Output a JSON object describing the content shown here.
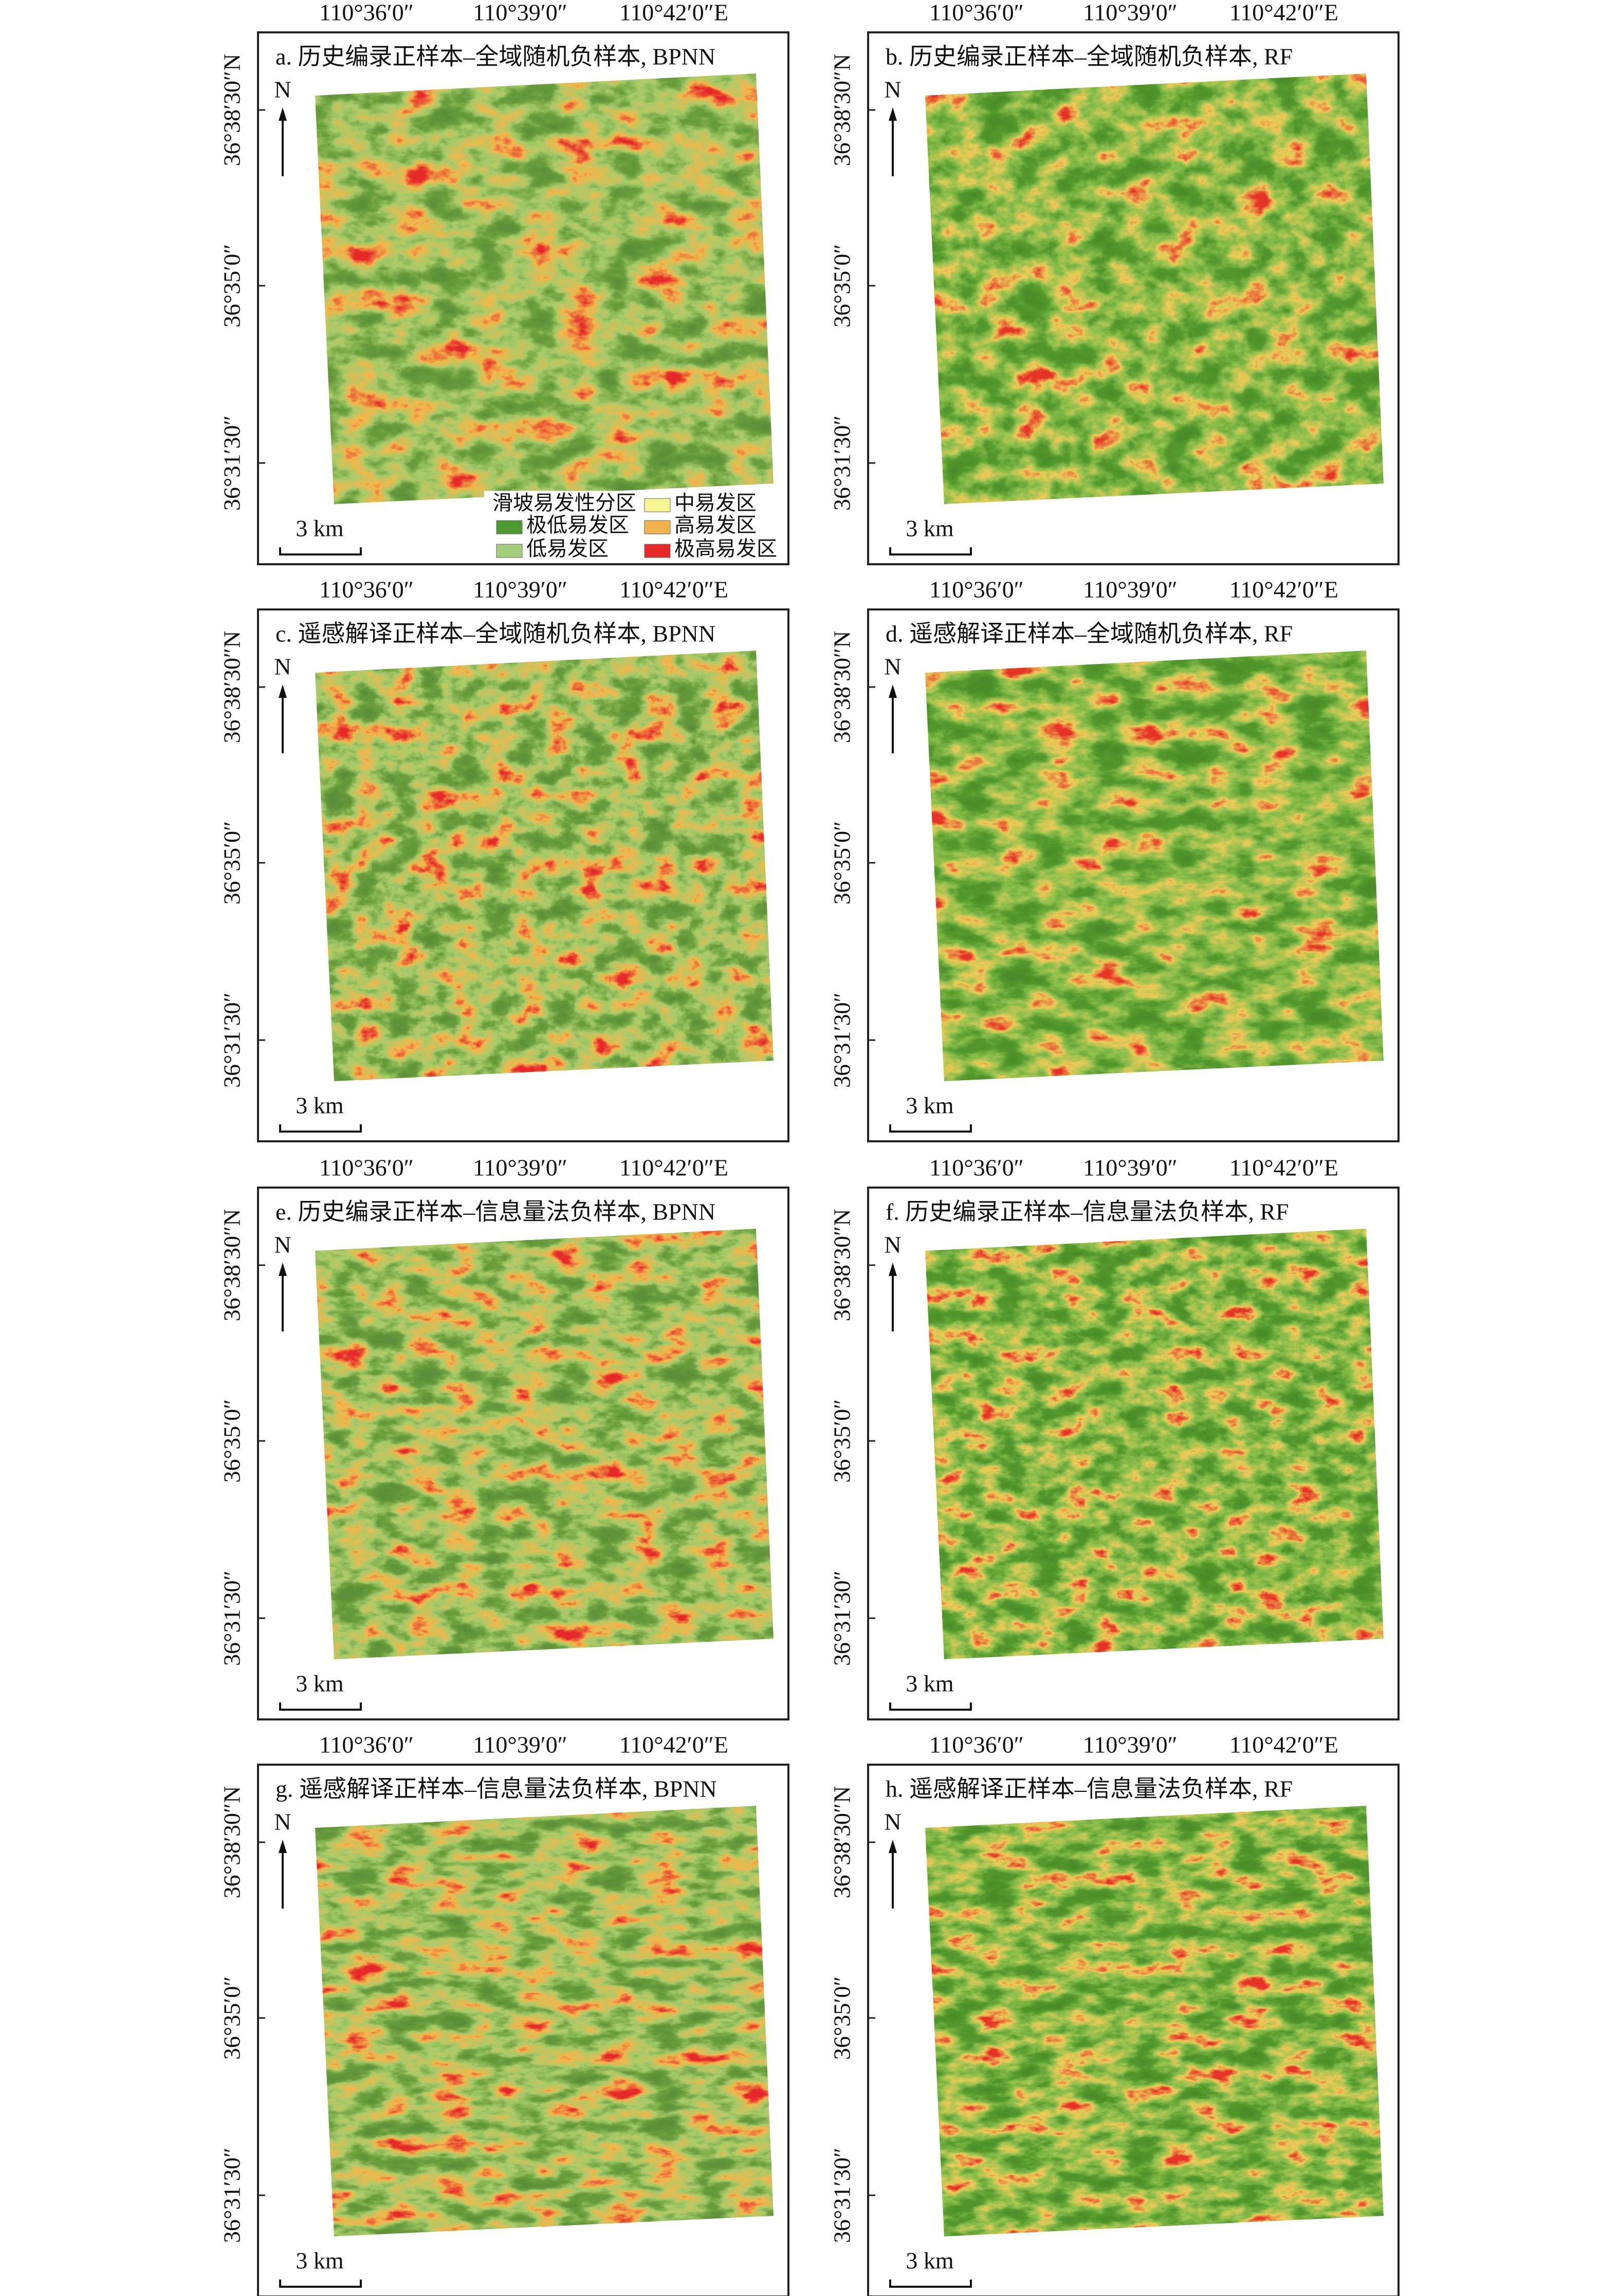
{
  "panels": [
    {
      "title": "a. 历史编录正样本–全域随机负样本, BPNN"
    },
    {
      "title": "b. 历史编录正样本–全域随机负样本, RF"
    },
    {
      "title": "c. 遥感解译正样本–全域随机负样本, BPNN"
    },
    {
      "title": "d. 遥感解译正样本–全域随机负样本, RF"
    },
    {
      "title": "e. 历史编录正样本–信息量法负样本, BPNN"
    },
    {
      "title": "f. 历史编录正样本–信息量法负样本, RF"
    },
    {
      "title": "g. 遥感解译正样本–信息量法负样本, BPNN"
    },
    {
      "title": "h. 遥感解译正样本–信息量法负样本, RF"
    }
  ],
  "x_tick_labels": [
    "110°36′0″",
    "110°39′0″",
    "110°42′0″E"
  ],
  "y_tick_labels": [
    "36°38′30″N",
    "36°35′0″",
    "36°31′30″"
  ],
  "north": "N",
  "scale_bar": "3 km",
  "legend": {
    "title": "滑坡易发性分区",
    "items": [
      {
        "label": "极低易发区",
        "color": "#4e9a32"
      },
      {
        "label": "低易发区",
        "color": "#a6cd7e"
      },
      {
        "label": "中易发区",
        "color": "#f5f594"
      },
      {
        "label": "高易发区",
        "color": "#f0b24c"
      },
      {
        "label": "极高易发区",
        "color": "#e8282a"
      }
    ]
  }
}
